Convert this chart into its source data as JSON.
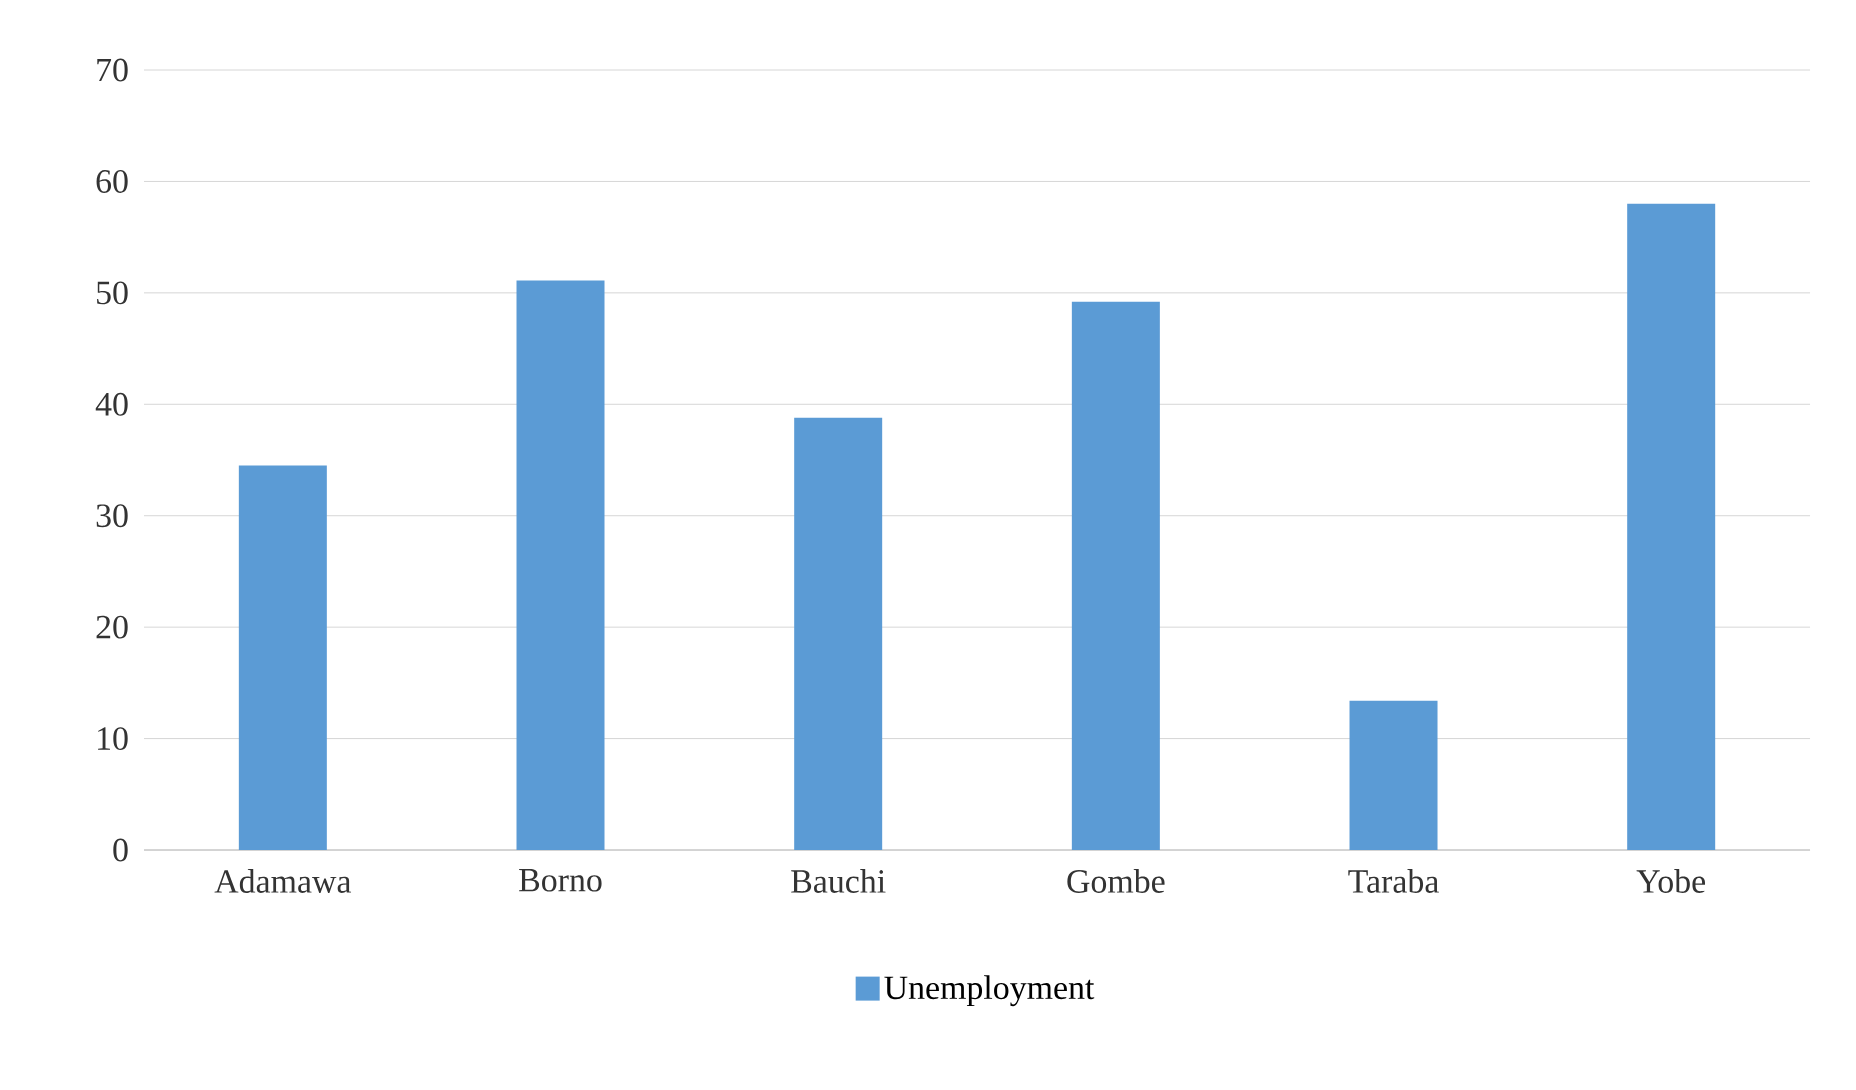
{
  "chart_data": {
    "type": "bar",
    "categories": [
      "Adamawa",
      "Borno",
      "Bauchi",
      "Gombe",
      "Taraba",
      "Yobe"
    ],
    "series": [
      {
        "name": "Unemployment",
        "color": "#5b9bd5",
        "values": [
          34.5,
          51.1,
          38.8,
          49.2,
          13.4,
          58.0
        ]
      }
    ],
    "ylim": [
      0,
      70
    ],
    "yticks": [
      0,
      10,
      20,
      30,
      40,
      50,
      60,
      70
    ],
    "grid": "y",
    "legend": "bottom"
  }
}
